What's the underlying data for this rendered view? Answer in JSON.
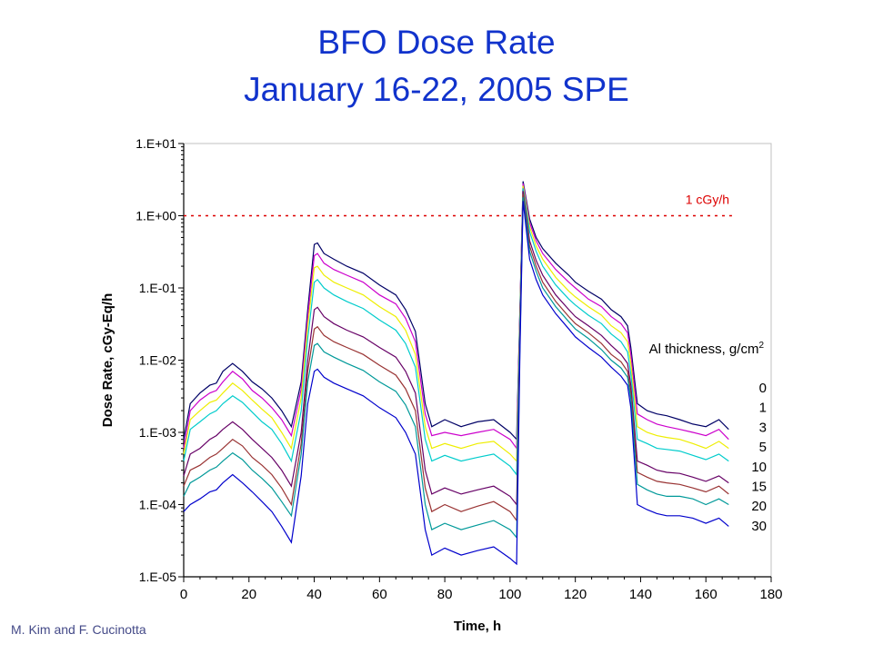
{
  "title_line1": "BFO Dose Rate",
  "title_line2": "January 16-22, 2005 SPE",
  "credit": "M. Kim and F. Cucinotta",
  "chart_data": {
    "type": "line",
    "title": "BFO Dose Rate January 16-22, 2005 SPE",
    "xlabel": "Time, h",
    "ylabel": "Dose Rate, cGy-Eq/h",
    "xlim": [
      0,
      180
    ],
    "ylim": [
      1e-05,
      10
    ],
    "yscale": "log",
    "xticks": [
      "0",
      "20",
      "40",
      "60",
      "80",
      "100",
      "120",
      "140",
      "160",
      "180"
    ],
    "yticks": [
      "1.E-05",
      "1.E-04",
      "1.E-03",
      "1.E-02",
      "1.E-01",
      "1.E+00",
      "1.E+01"
    ],
    "grid": false,
    "legend_title": "Al thickness, g/cm2",
    "legend_position": "right",
    "threshold": {
      "label": "1 cGy/h",
      "value": 1.0,
      "x_range": [
        0,
        168
      ],
      "color": "#dd0000"
    },
    "x": [
      0,
      2,
      5,
      8,
      10,
      12,
      15,
      18,
      21,
      24,
      27,
      30,
      33,
      36,
      38,
      40,
      41,
      43,
      46,
      50,
      55,
      60,
      65,
      68,
      71,
      74,
      76,
      80,
      85,
      90,
      95,
      100,
      102,
      103,
      104,
      106,
      108,
      110,
      114,
      118,
      120,
      124,
      128,
      131,
      134,
      136,
      137,
      139,
      142,
      145,
      148,
      152,
      156,
      160,
      164,
      167
    ],
    "series": [
      {
        "name": "0",
        "color": "#000066",
        "values": [
          0.0008,
          0.0025,
          0.0035,
          0.0045,
          0.0048,
          0.007,
          0.009,
          0.007,
          0.005,
          0.004,
          0.003,
          0.002,
          0.0012,
          0.005,
          0.05,
          0.4,
          0.42,
          0.3,
          0.25,
          0.2,
          0.16,
          0.11,
          0.08,
          0.05,
          0.025,
          0.0025,
          0.0012,
          0.0015,
          0.0012,
          0.0014,
          0.0015,
          0.001,
          0.0008,
          0.05,
          3.0,
          0.9,
          0.5,
          0.35,
          0.22,
          0.15,
          0.12,
          0.09,
          0.07,
          0.05,
          0.04,
          0.03,
          0.015,
          0.0025,
          0.002,
          0.0018,
          0.0017,
          0.0015,
          0.0013,
          0.0012,
          0.0015,
          0.0011
        ]
      },
      {
        "name": "1",
        "color": "#cc00cc",
        "values": [
          0.0006,
          0.002,
          0.0028,
          0.0035,
          0.0038,
          0.005,
          0.007,
          0.0055,
          0.0038,
          0.003,
          0.0022,
          0.0015,
          0.0009,
          0.004,
          0.04,
          0.28,
          0.3,
          0.22,
          0.18,
          0.15,
          0.12,
          0.08,
          0.06,
          0.038,
          0.018,
          0.0018,
          0.0009,
          0.001,
          0.0009,
          0.001,
          0.0011,
          0.0008,
          0.0006,
          0.045,
          2.8,
          0.8,
          0.45,
          0.3,
          0.18,
          0.12,
          0.1,
          0.07,
          0.055,
          0.04,
          0.032,
          0.024,
          0.012,
          0.0018,
          0.0015,
          0.0013,
          0.0012,
          0.0011,
          0.001,
          0.0009,
          0.0011,
          0.0008
        ]
      },
      {
        "name": "3",
        "color": "#eeee00",
        "values": [
          0.0005,
          0.0015,
          0.002,
          0.0026,
          0.0028,
          0.0035,
          0.0048,
          0.0038,
          0.0028,
          0.0021,
          0.0016,
          0.001,
          0.0006,
          0.003,
          0.03,
          0.19,
          0.2,
          0.15,
          0.12,
          0.1,
          0.08,
          0.055,
          0.04,
          0.026,
          0.012,
          0.0012,
          0.0006,
          0.0007,
          0.0006,
          0.0007,
          0.00075,
          0.0005,
          0.0004,
          0.04,
          2.6,
          0.7,
          0.38,
          0.25,
          0.14,
          0.09,
          0.075,
          0.055,
          0.042,
          0.03,
          0.024,
          0.018,
          0.009,
          0.0012,
          0.001,
          0.0009,
          0.00085,
          0.0008,
          0.0007,
          0.0006,
          0.00075,
          0.0006
        ]
      },
      {
        "name": "5",
        "color": "#00cccc",
        "values": [
          0.0004,
          0.0011,
          0.0014,
          0.0018,
          0.002,
          0.0025,
          0.0032,
          0.0026,
          0.0019,
          0.0014,
          0.0011,
          0.0007,
          0.0004,
          0.002,
          0.02,
          0.12,
          0.13,
          0.1,
          0.08,
          0.065,
          0.052,
          0.036,
          0.026,
          0.017,
          0.008,
          0.0008,
          0.0004,
          0.00048,
          0.0004,
          0.00045,
          0.0005,
          0.00034,
          0.00026,
          0.035,
          2.4,
          0.6,
          0.32,
          0.2,
          0.11,
          0.07,
          0.058,
          0.042,
          0.032,
          0.023,
          0.018,
          0.013,
          0.0065,
          0.0008,
          0.0007,
          0.0006,
          0.00058,
          0.00055,
          0.00048,
          0.00042,
          0.0005,
          0.0004
        ]
      },
      {
        "name": "10",
        "color": "#660066",
        "values": [
          0.00025,
          0.0005,
          0.0006,
          0.0008,
          0.0009,
          0.0011,
          0.0014,
          0.0011,
          0.0008,
          0.0006,
          0.00045,
          0.0003,
          0.00018,
          0.001,
          0.01,
          0.05,
          0.054,
          0.04,
          0.032,
          0.026,
          0.021,
          0.015,
          0.011,
          0.007,
          0.0035,
          0.0003,
          0.00014,
          0.00017,
          0.00014,
          0.00016,
          0.00018,
          0.00013,
          0.0001,
          0.025,
          2.2,
          0.45,
          0.24,
          0.15,
          0.08,
          0.05,
          0.04,
          0.03,
          0.022,
          0.016,
          0.012,
          0.009,
          0.0045,
          0.0004,
          0.00035,
          0.0003,
          0.00028,
          0.00027,
          0.00024,
          0.00021,
          0.00025,
          0.0002
        ]
      },
      {
        "name": "15",
        "color": "#993333",
        "values": [
          0.00018,
          0.0003,
          0.00035,
          0.00045,
          0.0005,
          0.0006,
          0.0008,
          0.00065,
          0.00045,
          0.00035,
          0.00026,
          0.00017,
          0.0001,
          0.0007,
          0.007,
          0.027,
          0.029,
          0.022,
          0.018,
          0.015,
          0.012,
          0.0085,
          0.0062,
          0.004,
          0.002,
          0.00017,
          8e-05,
          0.0001,
          8e-05,
          9.5e-05,
          0.00011,
          8e-05,
          6e-05,
          0.02,
          2.0,
          0.38,
          0.2,
          0.12,
          0.065,
          0.04,
          0.032,
          0.024,
          0.017,
          0.012,
          0.0095,
          0.007,
          0.0035,
          0.00028,
          0.00024,
          0.00021,
          0.0002,
          0.00019,
          0.00017,
          0.00015,
          0.00018,
          0.00014
        ]
      },
      {
        "name": "20",
        "color": "#009999",
        "values": [
          0.00013,
          0.0002,
          0.00024,
          0.0003,
          0.00033,
          0.0004,
          0.00052,
          0.00042,
          0.0003,
          0.00023,
          0.00017,
          0.00011,
          7e-05,
          0.0005,
          0.005,
          0.016,
          0.017,
          0.013,
          0.011,
          0.009,
          0.0072,
          0.005,
          0.0037,
          0.0024,
          0.0012,
          0.0001,
          4.5e-05,
          5.5e-05,
          4.5e-05,
          5.2e-05,
          6e-05,
          4.5e-05,
          3.5e-05,
          0.016,
          1.8,
          0.32,
          0.17,
          0.1,
          0.055,
          0.034,
          0.027,
          0.02,
          0.014,
          0.01,
          0.0078,
          0.0058,
          0.0029,
          0.00019,
          0.00016,
          0.00014,
          0.00013,
          0.00013,
          0.00012,
          0.0001,
          0.00012,
          0.0001
        ]
      },
      {
        "name": "30",
        "color": "#0000cc",
        "values": [
          8e-05,
          0.0001,
          0.00012,
          0.00015,
          0.00016,
          0.0002,
          0.00026,
          0.0002,
          0.00015,
          0.00011,
          8e-05,
          5e-05,
          3e-05,
          0.00025,
          0.0025,
          0.007,
          0.0075,
          0.0058,
          0.0048,
          0.004,
          0.0032,
          0.0022,
          0.0016,
          0.001,
          0.0005,
          4.5e-05,
          2e-05,
          2.5e-05,
          2e-05,
          2.3e-05,
          2.6e-05,
          1.8e-05,
          1.5e-05,
          0.012,
          1.6,
          0.25,
          0.13,
          0.08,
          0.044,
          0.027,
          0.021,
          0.015,
          0.011,
          0.008,
          0.006,
          0.0045,
          0.0022,
          0.0001,
          8.5e-05,
          7.5e-05,
          7e-05,
          7e-05,
          6.5e-05,
          5.5e-05,
          6.5e-05,
          5e-05
        ]
      }
    ]
  }
}
